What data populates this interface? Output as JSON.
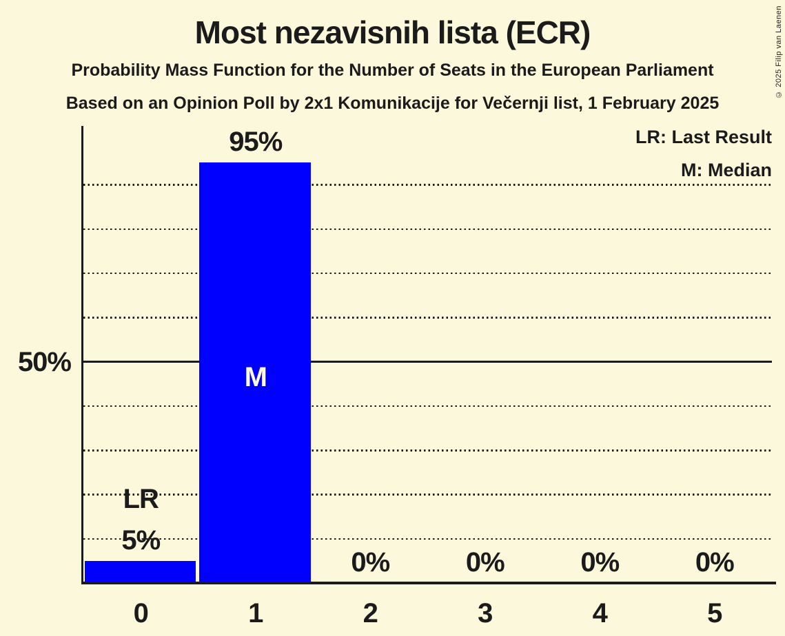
{
  "header": {
    "title": "Most nezavisnih lista (ECR)",
    "subtitle1": "Probability Mass Function for the Number of Seats in the European Parliament",
    "subtitle2": "Based on an Opinion Poll by 2x1 Komunikacije for Večernji list, 1 February 2025",
    "copyright": "© 2025 Filip van Laenen"
  },
  "legend": {
    "last_result": "LR: Last Result",
    "median": "M: Median"
  },
  "colors": {
    "background": "#FCF8DC",
    "bar": "#0000FF",
    "text": "#1B1B1B",
    "median_label": "#FCF8DC"
  },
  "chart_data": {
    "type": "bar",
    "title": "Most nezavisnih lista (ECR)",
    "categories": [
      "0",
      "1",
      "2",
      "3",
      "4",
      "5"
    ],
    "values": [
      5,
      95,
      0,
      0,
      0,
      0
    ],
    "value_labels": [
      "5%",
      "95%",
      "0%",
      "0%",
      "0%",
      "0%"
    ],
    "xlabel": "",
    "ylabel": "",
    "ylim": [
      0,
      100
    ],
    "y_ticks": [
      {
        "pct": 50,
        "label": "50%"
      }
    ],
    "gridlines": {
      "dotted_pct": [
        10,
        20,
        30,
        40,
        60,
        70,
        80,
        90
      ],
      "solid_pct": [
        50
      ]
    },
    "annotations": [
      {
        "category": "0",
        "text": "LR",
        "position": "above_bar"
      },
      {
        "category": "1",
        "text": "M",
        "position": "inside_bar"
      }
    ],
    "legend_position": "top-right",
    "last_result_category": "0",
    "median_category": "1"
  }
}
